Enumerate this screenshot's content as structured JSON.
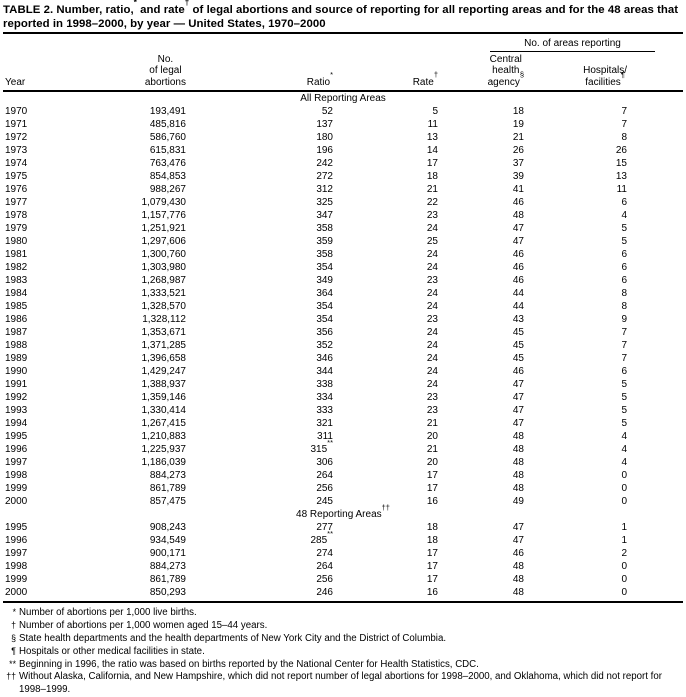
{
  "table": {
    "title_parts": [
      "TABLE 2. Number, ratio,",
      "*",
      " and rate",
      "†",
      " of legal abortions and source of reporting for all reporting areas and for the 48 areas that reported in 1998–2000, by year — United States, 1970–2000"
    ],
    "header": {
      "spanner": "No. of areas reporting",
      "columns": [
        {
          "key": "year",
          "lines": [
            "Year"
          ]
        },
        {
          "key": "no-of-legal-abortions",
          "lines": [
            "No.",
            "of legal",
            "abortions"
          ]
        },
        {
          "key": "ratio",
          "lines": [
            "Ratio*"
          ]
        },
        {
          "key": "rate",
          "lines": [
            "Rate†"
          ]
        },
        {
          "key": "central-health-agency",
          "lines": [
            "Central",
            "health",
            "agency§"
          ]
        },
        {
          "key": "hospitals-facilities",
          "lines": [
            "Hospitals/",
            "facilities¶"
          ]
        }
      ]
    },
    "sections": [
      {
        "label": "All Reporting Areas",
        "rows": [
          [
            "1970",
            "193,491",
            "52",
            "5",
            "18",
            "7"
          ],
          [
            "1971",
            "485,816",
            "137",
            "11",
            "19",
            "7"
          ],
          [
            "1972",
            "586,760",
            "180",
            "13",
            "21",
            "8"
          ],
          [
            "1973",
            "615,831",
            "196",
            "14",
            "26",
            "26"
          ],
          [
            "1974",
            "763,476",
            "242",
            "17",
            "37",
            "15"
          ],
          [
            "1975",
            "854,853",
            "272",
            "18",
            "39",
            "13"
          ],
          [
            "1976",
            "988,267",
            "312",
            "21",
            "41",
            "11"
          ],
          [
            "1977",
            "1,079,430",
            "325",
            "22",
            "46",
            "6"
          ],
          [
            "1978",
            "1,157,776",
            "347",
            "23",
            "48",
            "4"
          ],
          [
            "1979",
            "1,251,921",
            "358",
            "24",
            "47",
            "5"
          ],
          [
            "1980",
            "1,297,606",
            "359",
            "25",
            "47",
            "5"
          ],
          [
            "1981",
            "1,300,760",
            "358",
            "24",
            "46",
            "6"
          ],
          [
            "1982",
            "1,303,980",
            "354",
            "24",
            "46",
            "6"
          ],
          [
            "1983",
            "1,268,987",
            "349",
            "23",
            "46",
            "6"
          ],
          [
            "1984",
            "1,333,521",
            "364",
            "24",
            "44",
            "8"
          ],
          [
            "1985",
            "1,328,570",
            "354",
            "24",
            "44",
            "8"
          ],
          [
            "1986",
            "1,328,112",
            "354",
            "23",
            "43",
            "9"
          ],
          [
            "1987",
            "1,353,671",
            "356",
            "24",
            "45",
            "7"
          ],
          [
            "1988",
            "1,371,285",
            "352",
            "24",
            "45",
            "7"
          ],
          [
            "1989",
            "1,396,658",
            "346",
            "24",
            "45",
            "7"
          ],
          [
            "1990",
            "1,429,247",
            "344",
            "24",
            "46",
            "6"
          ],
          [
            "1991",
            "1,388,937",
            "338",
            "24",
            "47",
            "5"
          ],
          [
            "1992",
            "1,359,146",
            "334",
            "23",
            "47",
            "5"
          ],
          [
            "1993",
            "1,330,414",
            "333",
            "23",
            "47",
            "5"
          ],
          [
            "1994",
            "1,267,415",
            "321",
            "21",
            "47",
            "5"
          ],
          [
            "1995",
            "1,210,883",
            "311",
            "20",
            "48",
            "4"
          ],
          [
            "1996",
            "1,225,937",
            "315**",
            "21",
            "48",
            "4"
          ],
          [
            "1997",
            "1,186,039",
            "306",
            "20",
            "48",
            "4"
          ],
          [
            "1998",
            "884,273",
            "264",
            "17",
            "48",
            "0"
          ],
          [
            "1999",
            "861,789",
            "256",
            "17",
            "48",
            "0"
          ],
          [
            "2000",
            "857,475",
            "245",
            "16",
            "49",
            "0"
          ]
        ]
      },
      {
        "label": "48 Reporting Areas††",
        "rows": [
          [
            "1995",
            "908,243",
            "277",
            "18",
            "47",
            "1"
          ],
          [
            "1996",
            "934,549",
            "285**",
            "18",
            "47",
            "1"
          ],
          [
            "1997",
            "900,171",
            "274",
            "17",
            "46",
            "2"
          ],
          [
            "1998",
            "884,273",
            "264",
            "17",
            "48",
            "0"
          ],
          [
            "1999",
            "861,789",
            "256",
            "17",
            "48",
            "0"
          ],
          [
            "2000",
            "850,293",
            "246",
            "16",
            "48",
            "0"
          ]
        ]
      }
    ],
    "footnotes": [
      {
        "marker": "*",
        "text": "Number of abortions per 1,000 live births."
      },
      {
        "marker": "†",
        "text": "Number of abortions per 1,000 women aged 15–44 years."
      },
      {
        "marker": "§",
        "text": "State health departments and the health departments of New York City and the District of Columbia."
      },
      {
        "marker": "¶",
        "text": "Hospitals or other medical facilities in state."
      },
      {
        "marker": "**",
        "text": "Beginning in 1996, the ratio was based on births reported by the National Center for Health Statistics, CDC."
      },
      {
        "marker": "††",
        "text": "Without Alaska, California, and New Hampshire, which did not report number of legal abortions for 1998–2000, and Oklahoma, which did not report for 1998–1999."
      }
    ]
  }
}
